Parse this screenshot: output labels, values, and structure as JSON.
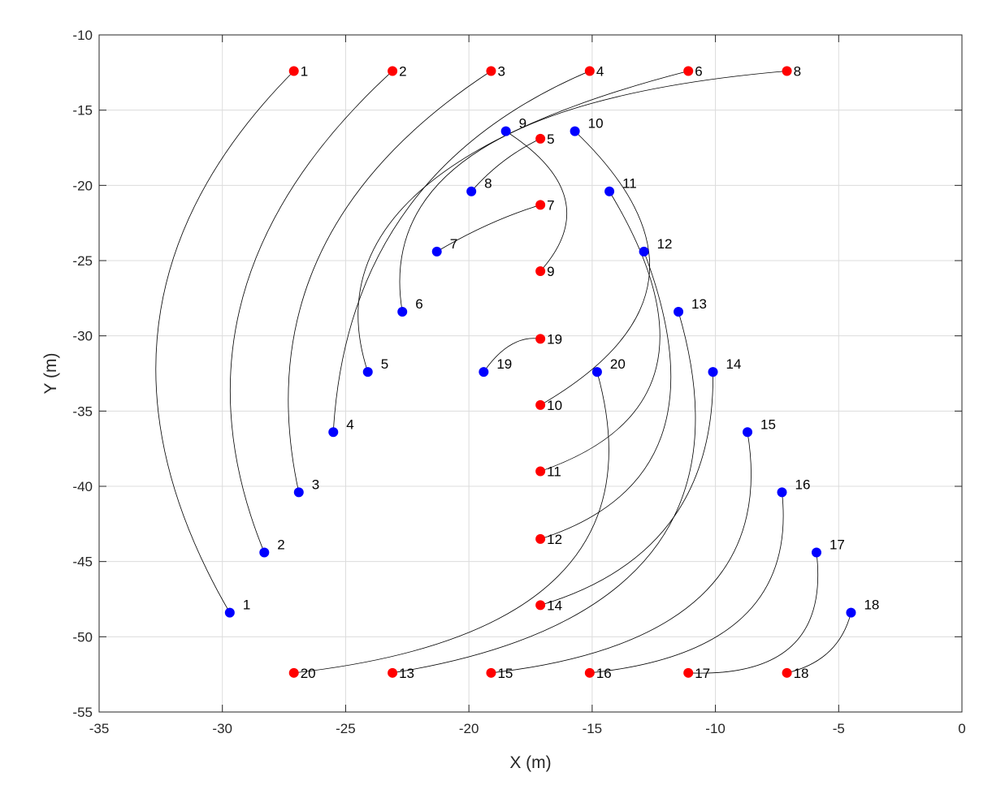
{
  "chart_data": {
    "type": "scatter",
    "xlabel": "X (m)",
    "ylabel": "Y (m)",
    "xlim": [
      -35,
      0
    ],
    "ylim": [
      -55,
      -10
    ],
    "xticks": [
      -35,
      -30,
      -25,
      -20,
      -15,
      -10,
      -5,
      0
    ],
    "yticks": [
      -10,
      -15,
      -20,
      -25,
      -30,
      -35,
      -40,
      -45,
      -50,
      -55
    ],
    "grid": true,
    "colors": {
      "start": "#0000ff",
      "end": "#ff0000",
      "path": "#000000",
      "grid": "#dcdcdc",
      "axis": "#262626"
    },
    "series": [
      {
        "color": "#0000ff",
        "points": [
          {
            "label": "1",
            "x": -29.7,
            "y": -48.4
          },
          {
            "label": "2",
            "x": -28.3,
            "y": -44.4
          },
          {
            "label": "3",
            "x": -26.9,
            "y": -40.4
          },
          {
            "label": "4",
            "x": -25.5,
            "y": -36.4
          },
          {
            "label": "5",
            "x": -24.1,
            "y": -32.4
          },
          {
            "label": "6",
            "x": -22.7,
            "y": -28.4
          },
          {
            "label": "7",
            "x": -21.3,
            "y": -24.4
          },
          {
            "label": "8",
            "x": -19.9,
            "y": -20.4
          },
          {
            "label": "9",
            "x": -18.5,
            "y": -16.4
          },
          {
            "label": "10",
            "x": -15.7,
            "y": -16.4
          },
          {
            "label": "11",
            "x": -14.3,
            "y": -20.4
          },
          {
            "label": "12",
            "x": -12.9,
            "y": -24.4
          },
          {
            "label": "13",
            "x": -11.5,
            "y": -28.4
          },
          {
            "label": "14",
            "x": -10.1,
            "y": -32.4
          },
          {
            "label": "15",
            "x": -8.7,
            "y": -36.4
          },
          {
            "label": "16",
            "x": -7.3,
            "y": -40.4
          },
          {
            "label": "17",
            "x": -5.9,
            "y": -44.4
          },
          {
            "label": "18",
            "x": -4.5,
            "y": -48.4
          },
          {
            "label": "19",
            "x": -19.4,
            "y": -32.4
          },
          {
            "label": "20",
            "x": -14.8,
            "y": -32.4
          }
        ]
      },
      {
        "color": "#ff0000",
        "points": [
          {
            "label": "1",
            "x": -27.1,
            "y": -12.4
          },
          {
            "label": "2",
            "x": -23.1,
            "y": -12.4
          },
          {
            "label": "3",
            "x": -19.1,
            "y": -12.4
          },
          {
            "label": "4",
            "x": -15.1,
            "y": -12.4
          },
          {
            "label": "5",
            "x": -17.1,
            "y": -16.9
          },
          {
            "label": "6",
            "x": -11.1,
            "y": -12.4
          },
          {
            "label": "7",
            "x": -17.1,
            "y": -21.3
          },
          {
            "label": "8",
            "x": -7.1,
            "y": -12.4
          },
          {
            "label": "9",
            "x": -17.1,
            "y": -25.7
          },
          {
            "label": "10",
            "x": -17.1,
            "y": -34.6
          },
          {
            "label": "11",
            "x": -17.1,
            "y": -39.0
          },
          {
            "label": "12",
            "x": -17.1,
            "y": -43.5
          },
          {
            "label": "13",
            "x": -23.1,
            "y": -52.4
          },
          {
            "label": "14",
            "x": -17.1,
            "y": -47.9
          },
          {
            "label": "15",
            "x": -19.1,
            "y": -52.4
          },
          {
            "label": "16",
            "x": -15.1,
            "y": -52.4
          },
          {
            "label": "17",
            "x": -11.1,
            "y": -52.4
          },
          {
            "label": "18",
            "x": -7.1,
            "y": -52.4
          },
          {
            "label": "19",
            "x": -17.1,
            "y": -30.2
          },
          {
            "label": "20",
            "x": -27.1,
            "y": -52.4
          }
        ]
      }
    ],
    "paths": [
      {
        "id": "1",
        "from": [
          -29.7,
          -48.4
        ],
        "to": [
          -27.1,
          -12.4
        ],
        "via": [
          -32.6,
          -29.4
        ]
      },
      {
        "id": "2",
        "from": [
          -28.3,
          -44.4
        ],
        "to": [
          -23.1,
          -12.4
        ],
        "via": [
          -29.2,
          -27.6
        ]
      },
      {
        "id": "3",
        "from": [
          -26.9,
          -40.4
        ],
        "to": [
          -19.1,
          -12.4
        ],
        "via": [
          -26.1,
          -24.8
        ]
      },
      {
        "id": "4",
        "from": [
          -25.5,
          -36.4
        ],
        "to": [
          -15.1,
          -12.4
        ],
        "via": [
          -22.6,
          -21.8
        ]
      },
      {
        "id": "5",
        "from": [
          -24.1,
          -32.4
        ],
        "to": [
          -11.1,
          -12.4
        ],
        "via": [
          -22.2,
          -20.7
        ]
      },
      {
        "id": "6",
        "from": [
          -22.7,
          -28.4
        ],
        "to": [
          -7.1,
          -12.4
        ],
        "via": [
          -19.5,
          -17.6
        ]
      },
      {
        "id": "7",
        "from": [
          -21.3,
          -24.4
        ],
        "to": [
          -17.1,
          -21.3
        ],
        "via": [
          -19.2,
          -22.6
        ]
      },
      {
        "id": "8",
        "from": [
          -19.9,
          -20.4
        ],
        "to": [
          -17.1,
          -16.9
        ],
        "via": [
          -18.6,
          -18.4
        ]
      },
      {
        "id": "9",
        "from": [
          -18.5,
          -16.4
        ],
        "to": [
          -17.1,
          -25.7
        ],
        "via": [
          -16.1,
          -20.9
        ]
      },
      {
        "id": "10",
        "from": [
          -15.7,
          -16.4
        ],
        "to": [
          -17.1,
          -34.6
        ],
        "via": [
          -12.7,
          -26.2
        ]
      },
      {
        "id": "11",
        "from": [
          -14.3,
          -20.4
        ],
        "to": [
          -17.1,
          -39.0
        ],
        "via": [
          -12.4,
          -32.1
        ]
      },
      {
        "id": "12",
        "from": [
          -12.9,
          -24.4
        ],
        "to": [
          -17.1,
          -43.5
        ],
        "via": [
          -12.2,
          -36.7
        ]
      },
      {
        "id": "13",
        "from": [
          -11.5,
          -28.4
        ],
        "to": [
          -23.1,
          -52.4
        ],
        "via": [
          -12.6,
          -44.4
        ]
      },
      {
        "id": "14",
        "from": [
          -10.1,
          -32.4
        ],
        "to": [
          -17.1,
          -47.9
        ],
        "via": [
          -11.8,
          -42.3
        ]
      },
      {
        "id": "15",
        "from": [
          -8.7,
          -36.4
        ],
        "to": [
          -19.1,
          -52.4
        ],
        "via": [
          -10.6,
          -47.3
        ]
      },
      {
        "id": "16",
        "from": [
          -7.3,
          -40.4
        ],
        "to": [
          -15.1,
          -52.4
        ],
        "via": [
          -8.9,
          -48.7
        ]
      },
      {
        "id": "17",
        "from": [
          -5.9,
          -44.4
        ],
        "to": [
          -11.1,
          -52.4
        ],
        "via": [
          -6.9,
          -50.6
        ]
      },
      {
        "id": "18",
        "from": [
          -4.5,
          -48.4
        ],
        "to": [
          -7.1,
          -52.4
        ],
        "via": [
          -5.4,
          -51.0
        ]
      },
      {
        "id": "19",
        "from": [
          -19.4,
          -32.4
        ],
        "to": [
          -17.1,
          -30.2
        ],
        "via": [
          -18.3,
          -30.6
        ]
      },
      {
        "id": "20",
        "from": [
          -14.8,
          -32.4
        ],
        "to": [
          -27.1,
          -52.4
        ],
        "via": [
          -16.4,
          -46.0
        ]
      }
    ]
  }
}
